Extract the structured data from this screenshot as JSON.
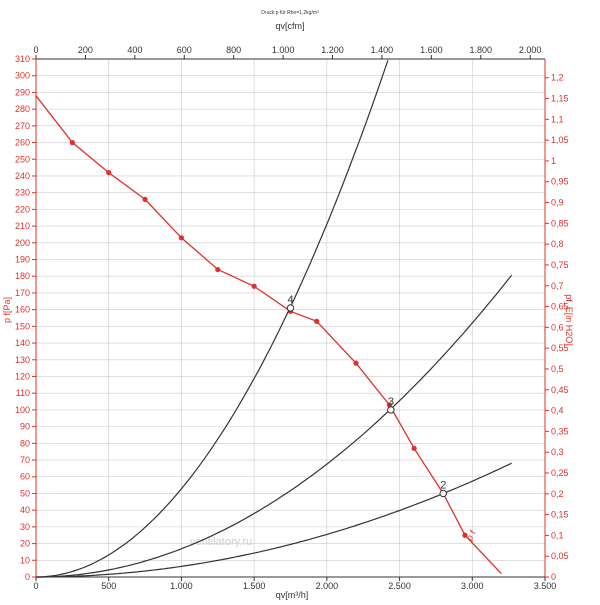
{
  "chart_data": {
    "type": "line",
    "title": "Druck p für Rho=1,2kg/m³",
    "watermark": "ventilatory.ru",
    "colors": {
      "fan_curve": "#e0302a",
      "axis_red": "#e0302a",
      "system_curves": "#333333",
      "grid": "#cccccc",
      "axis": "#333333"
    },
    "axes": {
      "x_bottom": {
        "label": "qv[m³/h]",
        "range": [
          0,
          3500
        ],
        "ticks": [
          0,
          500,
          1000,
          1500,
          2000,
          2500,
          3000,
          3500
        ],
        "tick_labels": [
          "0",
          "500",
          "1.000",
          "1.500",
          "2.000",
          "2.500",
          "3.000",
          "3.500"
        ]
      },
      "x_top": {
        "label": "qv[cfm]",
        "range": [
          0,
          2060
        ],
        "ticks": [
          0,
          200,
          400,
          600,
          800,
          1000,
          1200,
          1400,
          1600,
          1800,
          2000
        ],
        "tick_labels": [
          "0",
          "200",
          "400",
          "600",
          "800",
          "1.000",
          "1.200",
          "1.400",
          "1.600",
          "1.800",
          "2.000"
        ]
      },
      "y_left": {
        "label": "p f[Pa]",
        "range": [
          0,
          310
        ],
        "ticks": [
          0,
          10,
          20,
          30,
          40,
          50,
          60,
          70,
          80,
          90,
          100,
          110,
          120,
          130,
          140,
          150,
          160,
          170,
          180,
          190,
          200,
          210,
          220,
          230,
          240,
          250,
          260,
          270,
          280,
          290,
          300,
          310
        ],
        "tick_labels": [
          "0",
          "10",
          "20",
          "30",
          "40",
          "50",
          "60",
          "70",
          "80",
          "90",
          "100",
          "110",
          "120",
          "130",
          "140",
          "150",
          "160",
          "170",
          "180",
          "190",
          "200",
          "210",
          "220",
          "230",
          "240",
          "250",
          "260",
          "270",
          "280",
          "290",
          "300",
          "310"
        ]
      },
      "y_right": {
        "label": "pf_E[in H2O]",
        "range": [
          0,
          1.245
        ],
        "ticks": [
          0,
          0.05,
          0.1,
          0.15,
          0.2,
          0.25,
          0.3,
          0.35,
          0.4,
          0.45,
          0.5,
          0.55,
          0.6,
          0.65,
          0.7,
          0.75,
          0.8,
          0.85,
          0.9,
          0.95,
          1,
          1.05,
          1.1,
          1.15,
          1.2
        ],
        "tick_labels": [
          "0",
          "0,05",
          "0,1",
          "0,15",
          "0,2",
          "0,25",
          "0,3",
          "0,35",
          "0,4",
          "0,45",
          "0,5",
          "0,55",
          "0,6",
          "0,65",
          "0,7",
          "0,75",
          "0,8",
          "0,85",
          "0,9",
          "0,95",
          "1",
          "1,05",
          "1,1",
          "1,15",
          "1,2"
        ]
      }
    },
    "grid": true,
    "series": [
      {
        "name": "p f",
        "kind": "fan_curve",
        "x": [
          0,
          250,
          500,
          750,
          1000,
          1250,
          1500,
          1750,
          1930,
          2200,
          2430,
          2600,
          2800,
          2950,
          3200
        ],
        "y": [
          288,
          260,
          242,
          226,
          203,
          184,
          174,
          159,
          153,
          128,
          103,
          77,
          50,
          25,
          2
        ],
        "markers": [
          250,
          500,
          750,
          1000,
          1250,
          1500,
          1750,
          1930,
          2200,
          2430,
          2600,
          2800,
          2950
        ]
      },
      {
        "kind": "system_curve",
        "id": "4",
        "k": 5.28e-05,
        "x_max": 2420
      },
      {
        "kind": "system_curve",
        "id": "3",
        "k": 1.689e-05,
        "x_max": 3270
      },
      {
        "kind": "system_curve",
        "id": "2",
        "k": 6.37e-06,
        "x_max": 3270
      }
    ],
    "operating_points": [
      {
        "label": "4",
        "x": 1750,
        "y": 161
      },
      {
        "label": "3",
        "x": 2440,
        "y": 100
      },
      {
        "label": "2",
        "x": 2800,
        "y": 50
      }
    ]
  }
}
